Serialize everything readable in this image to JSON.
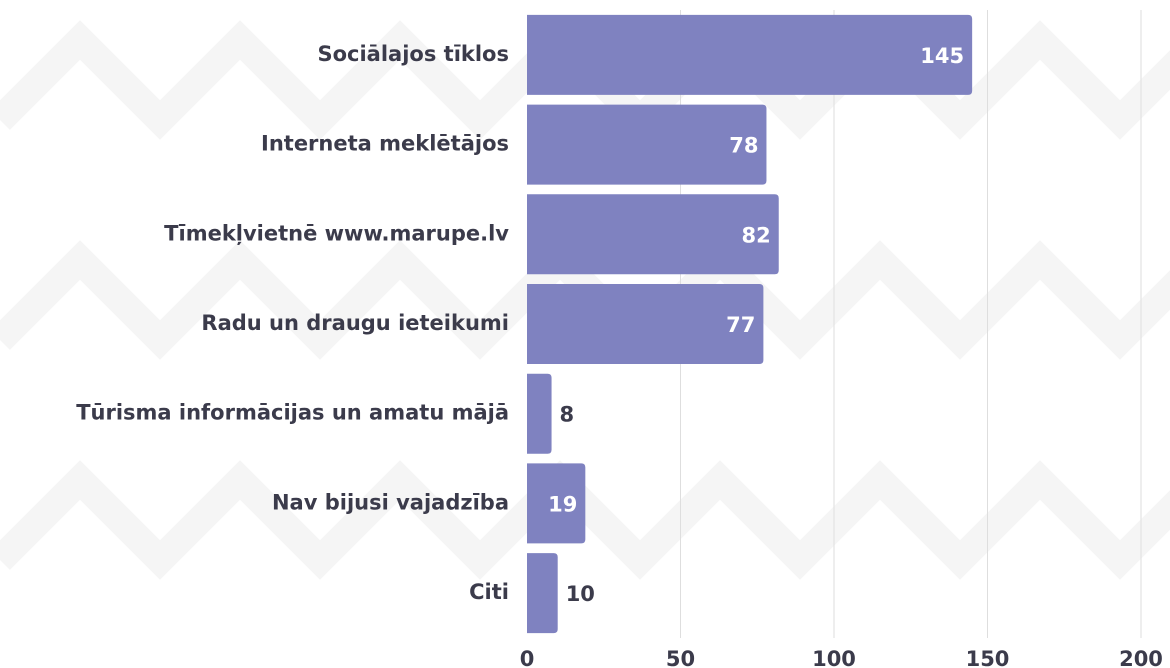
{
  "chart_data": {
    "type": "bar",
    "orientation": "horizontal",
    "categories": [
      "Sociālajos tīklos",
      "Interneta meklētājos",
      "Tīmekļvietnē www.marupe.lv",
      "Radu un draugu ieteikumi",
      "Tūrisma informācijas un amatu mājā",
      "Nav bijusi vajadzība",
      "Citi"
    ],
    "values": [
      145,
      78,
      82,
      77,
      8,
      19,
      10
    ],
    "color": "#7f82c0",
    "xlim": [
      0,
      200
    ],
    "xticks": [
      0,
      50,
      100,
      150,
      200
    ],
    "grid": true
  }
}
